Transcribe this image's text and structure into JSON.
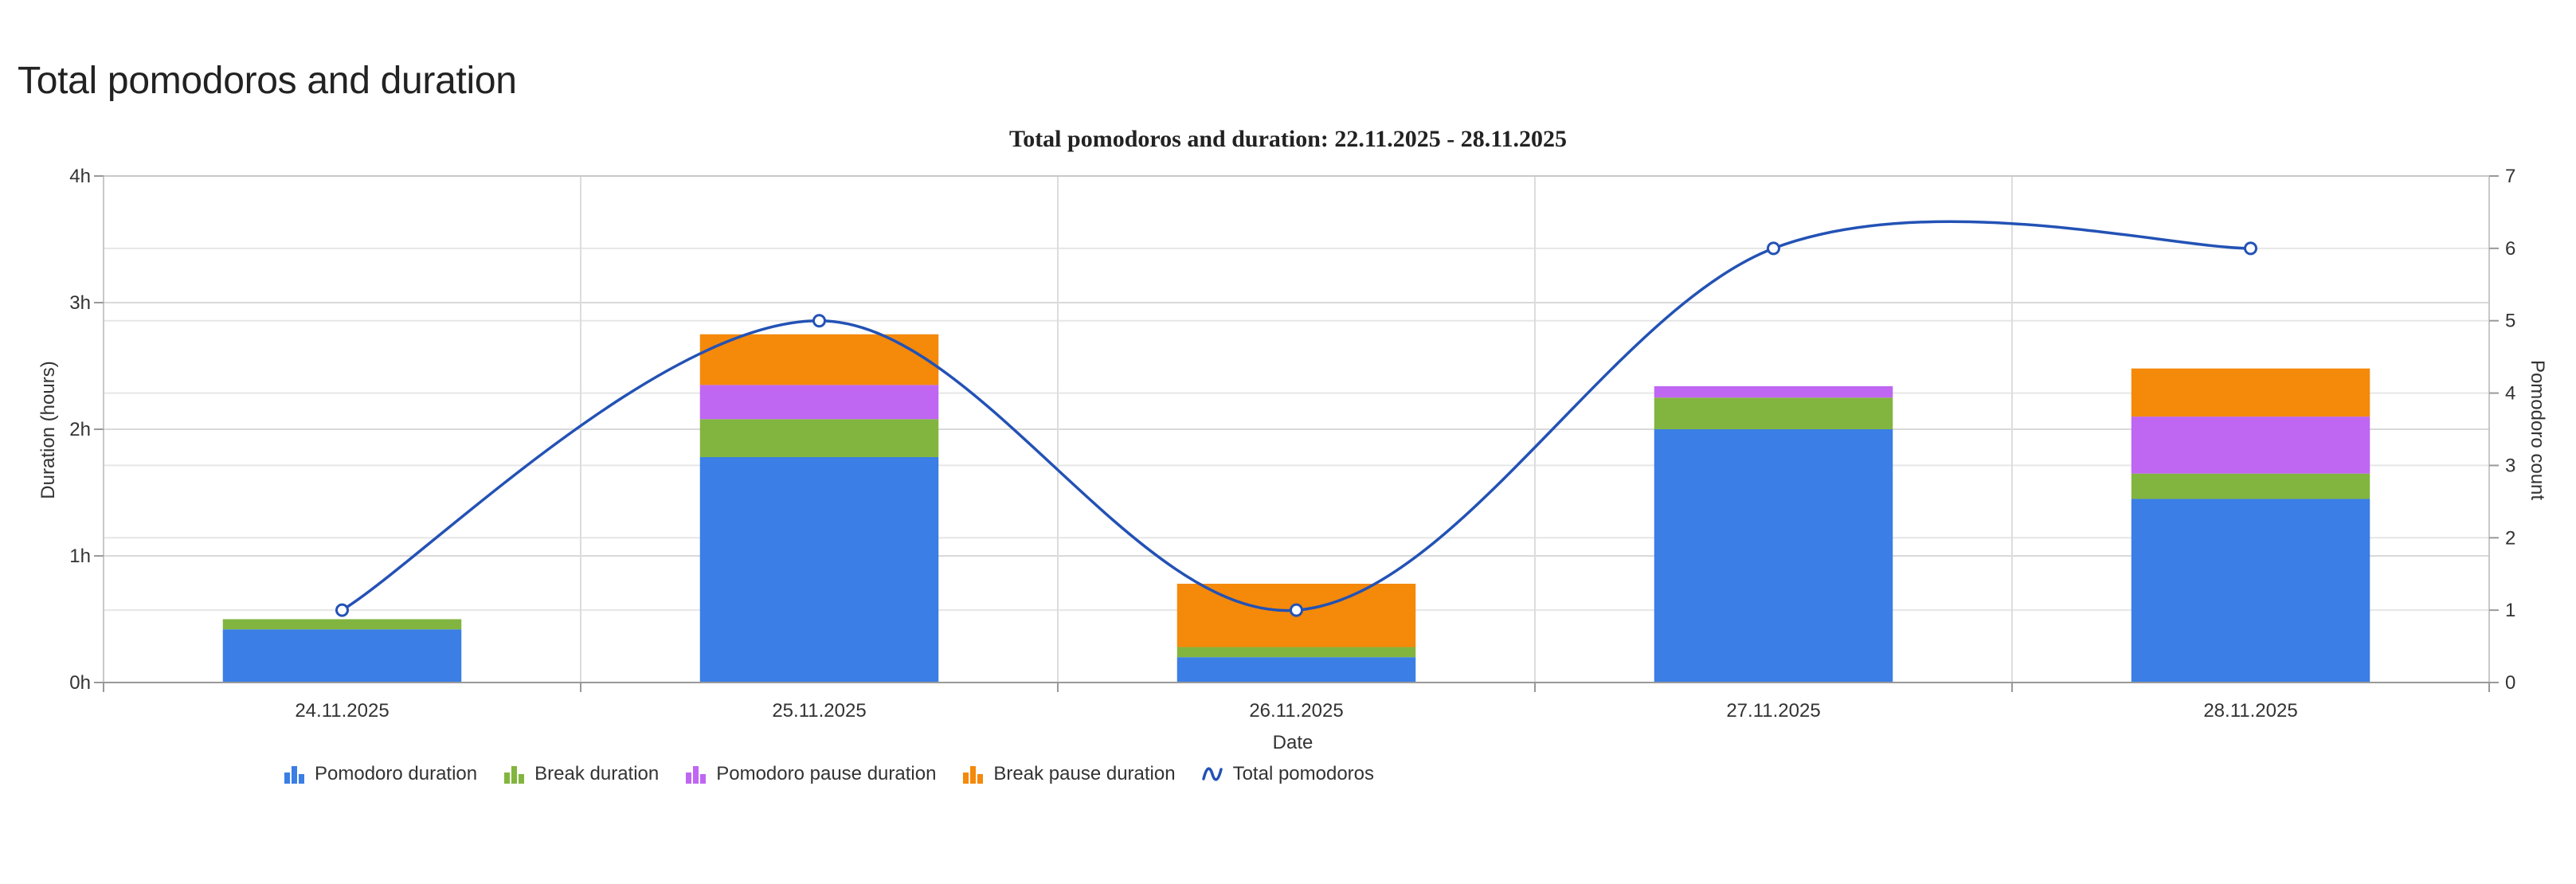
{
  "page": {
    "heading": "Total pomodoros and duration"
  },
  "chart_data": {
    "type": "bar",
    "title": "Total pomodoros and duration: 22.11.2025 - 28.11.2025",
    "xlabel": "Date",
    "ylabel": "Duration (hours)",
    "y2label": "Pomodoro count",
    "categories": [
      "24.11.2025",
      "25.11.2025",
      "26.11.2025",
      "27.11.2025",
      "28.11.2025"
    ],
    "ylim": [
      0,
      4
    ],
    "y_ticks": [
      "0h",
      "1h",
      "2h",
      "3h",
      "4h"
    ],
    "y2lim": [
      0,
      7
    ],
    "y2_ticks": [
      "0",
      "1",
      "2",
      "3",
      "4",
      "5",
      "6",
      "7"
    ],
    "stacked": true,
    "grid": true,
    "legend_position": "bottom-left",
    "series": [
      {
        "name": "Pomodoro duration",
        "type": "bar",
        "axis": "left",
        "color": "#3a7ee6",
        "values": [
          0.42,
          1.78,
          0.2,
          2.0,
          1.45
        ]
      },
      {
        "name": "Break duration",
        "type": "bar",
        "axis": "left",
        "color": "#82b53f",
        "values": [
          0.08,
          0.3,
          0.08,
          0.25,
          0.2
        ]
      },
      {
        "name": "Pomodoro pause duration",
        "type": "bar",
        "axis": "left",
        "color": "#bf66f2",
        "values": [
          0.0,
          0.27,
          0.0,
          0.09,
          0.45
        ]
      },
      {
        "name": "Break pause duration",
        "type": "bar",
        "axis": "left",
        "color": "#f4890a",
        "values": [
          0.0,
          0.4,
          0.5,
          0.0,
          0.38
        ]
      },
      {
        "name": "Total pomodoros",
        "type": "line",
        "axis": "right",
        "color": "#2352b5",
        "smooth": true,
        "values": [
          1,
          5,
          1,
          6,
          6
        ]
      }
    ]
  }
}
